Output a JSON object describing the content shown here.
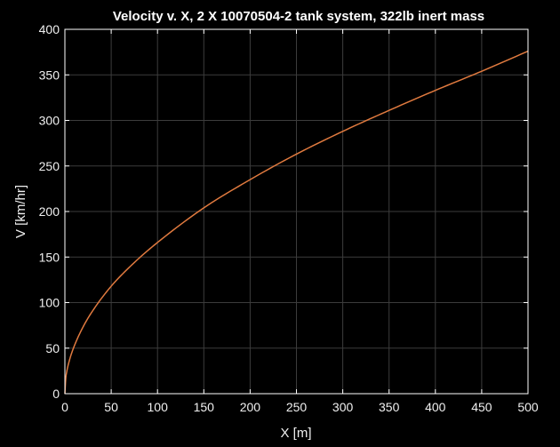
{
  "chart_data": {
    "type": "line",
    "title": "Velocity v. X, 2 X 10070504-2 tank system, 322lb inert mass",
    "xlabel": "X [m]",
    "ylabel": "V [km/hr]",
    "xlim": [
      0,
      500
    ],
    "ylim": [
      0,
      400
    ],
    "xticks": [
      0,
      50,
      100,
      150,
      200,
      250,
      300,
      350,
      400,
      450,
      500
    ],
    "yticks": [
      0,
      50,
      100,
      150,
      200,
      250,
      300,
      350,
      400
    ],
    "grid": true,
    "legend": "none",
    "colors": {
      "background": "#000000",
      "axes": "#ffffff",
      "grid": "#3c3c3c",
      "line": "#e07a3f"
    },
    "series": [
      {
        "x": [
          0,
          1,
          2,
          5,
          10,
          20,
          30,
          50,
          75,
          100,
          150,
          200,
          250,
          300,
          350,
          400,
          450,
          500
        ],
        "y": [
          0,
          17,
          24,
          37,
          52,
          74,
          91,
          118,
          144,
          166,
          204,
          235,
          263,
          288,
          311,
          333,
          354,
          376
        ]
      }
    ]
  }
}
